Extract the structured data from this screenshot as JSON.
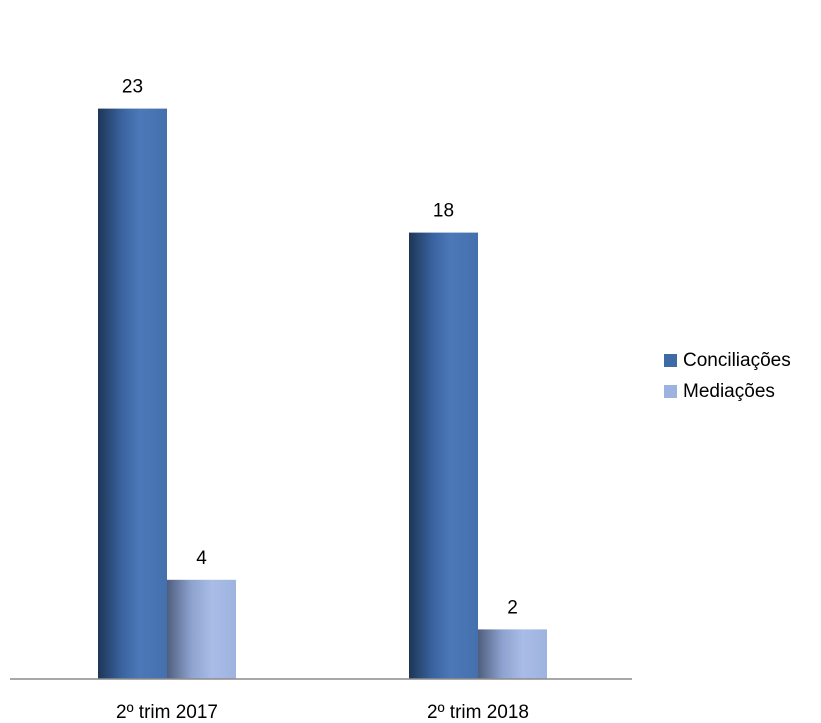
{
  "chart_data": {
    "type": "bar",
    "title": "",
    "xlabel": "",
    "ylabel": "",
    "categories": [
      "2º trim 2017",
      "2º trim 2018"
    ],
    "series": [
      {
        "name": "Conciliações",
        "values": [
          23,
          18
        ],
        "color": "#3E6AA6"
      },
      {
        "name": "Mediações",
        "values": [
          4,
          2
        ],
        "color": "#9DB2DE"
      }
    ],
    "ylim": [
      0,
      25
    ],
    "grid": false,
    "legend_position": "right",
    "data_labels": true
  }
}
